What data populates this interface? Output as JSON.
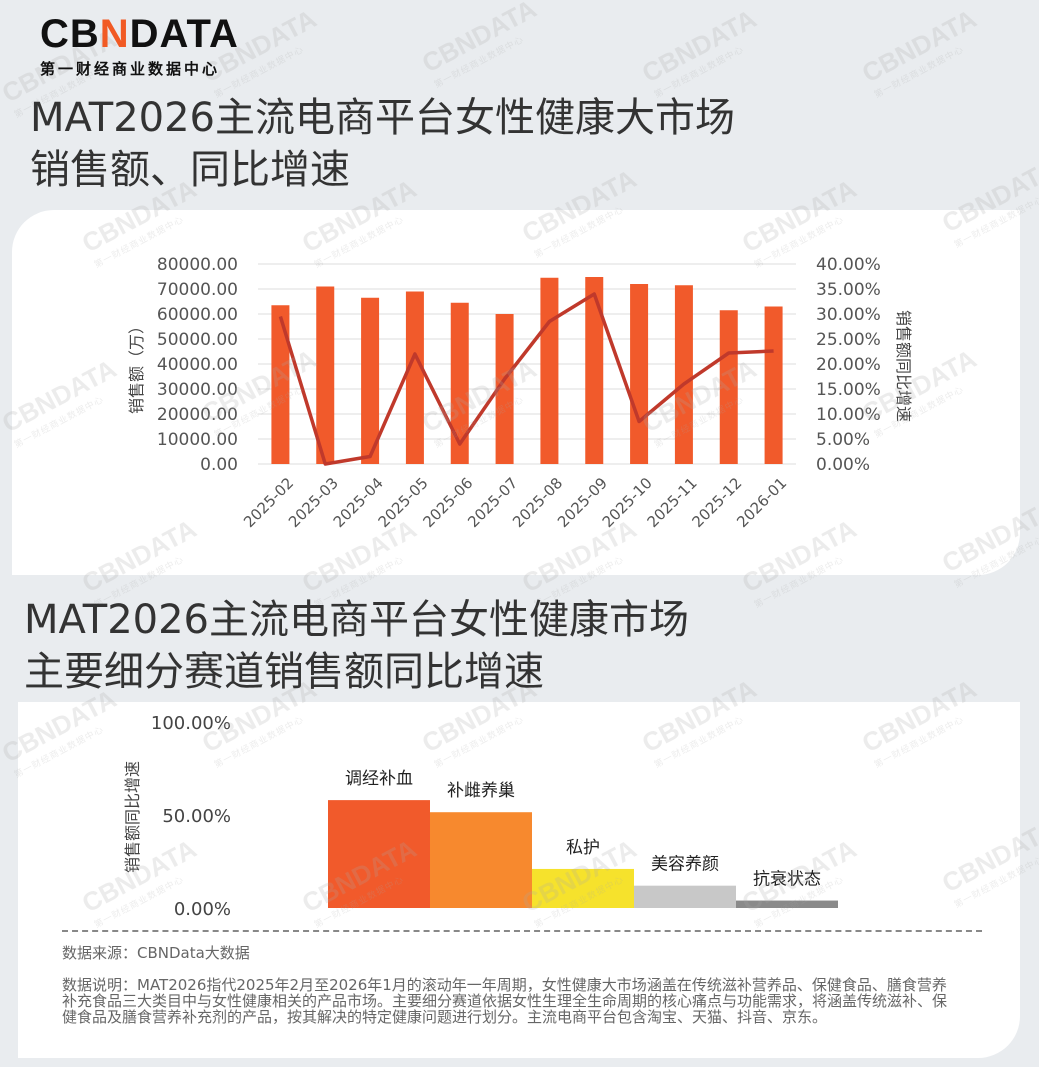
{
  "logo": {
    "prefix": "CB",
    "accent": "N",
    "suffix": "DATA",
    "subtitle": "第一财经商业数据中心"
  },
  "title1": [
    "MAT2026主流电商平台女性健康大市场",
    "销售额、同比增速"
  ],
  "title2": [
    "MAT2026主流电商平台女性健康市场",
    "主要细分赛道销售额同比增速"
  ],
  "chart_data": [
    {
      "type": "bar+line",
      "categories": [
        "2025-02",
        "2025-03",
        "2025-04",
        "2025-05",
        "2025-06",
        "2025-07",
        "2025-08",
        "2025-09",
        "2025-10",
        "2025-11",
        "2025-12",
        "2026-01"
      ],
      "bar_values": [
        63500,
        71000,
        66500,
        69000,
        64500,
        60000,
        74500,
        74800,
        72000,
        71500,
        61500,
        63000
      ],
      "line_values": [
        0.295,
        0.0,
        0.015,
        0.22,
        0.04,
        0.17,
        0.285,
        0.34,
        0.085,
        0.16,
        0.222,
        0.226
      ],
      "ylabel_left": "销售额（万）",
      "ylabel_right": "销售额同比增速",
      "left_ticks": [
        "0.00",
        "10000.00",
        "20000.00",
        "30000.00",
        "40000.00",
        "50000.00",
        "60000.00",
        "70000.00",
        "80000.00"
      ],
      "right_ticks": [
        "0.00%",
        "5.00%",
        "10.00%",
        "15.00%",
        "20.00%",
        "25.00%",
        "30.00%",
        "35.00%",
        "40.00%"
      ],
      "ylim_left": [
        0,
        80000
      ],
      "ylim_right": [
        0,
        0.4
      ],
      "bar_color": "#f15a2b",
      "line_color": "#c0392b",
      "grid": true
    },
    {
      "type": "bar",
      "categories": [
        "调经补血",
        "补雌养巢",
        "私护",
        "美容养颜",
        "抗衰状态"
      ],
      "values": [
        0.58,
        0.515,
        0.21,
        0.12,
        0.04
      ],
      "colors": [
        "#f15a2b",
        "#f7892e",
        "#f6e22c",
        "#c8c8c8",
        "#8a8a8a"
      ],
      "ylabel": "销售额同比增速",
      "ticks": [
        "0.00%",
        "50.00%",
        "100.00%"
      ],
      "ylim": [
        0,
        1.0
      ]
    }
  ],
  "notes": {
    "source": "数据来源：CBNData大数据",
    "description": "数据说明：MAT2026指代2025年2月至2026年1月的滚动年一年周期，女性健康大市场涵盖在传统滋补营养品、保健食品、膳食营养补充食品三大类目中与女性健康相关的产品市场。主要细分赛道依据女性生理全生命周期的核心痛点与功能需求，将涵盖传统滋补、保健食品及膳食营养补充剂的产品，按其解决的特定健康问题进行划分。主流电商平台包含淘宝、天猫、抖音、京东。"
  },
  "watermark": {
    "main": "CBNDATA",
    "sub": "第一财经商业数据中心"
  }
}
